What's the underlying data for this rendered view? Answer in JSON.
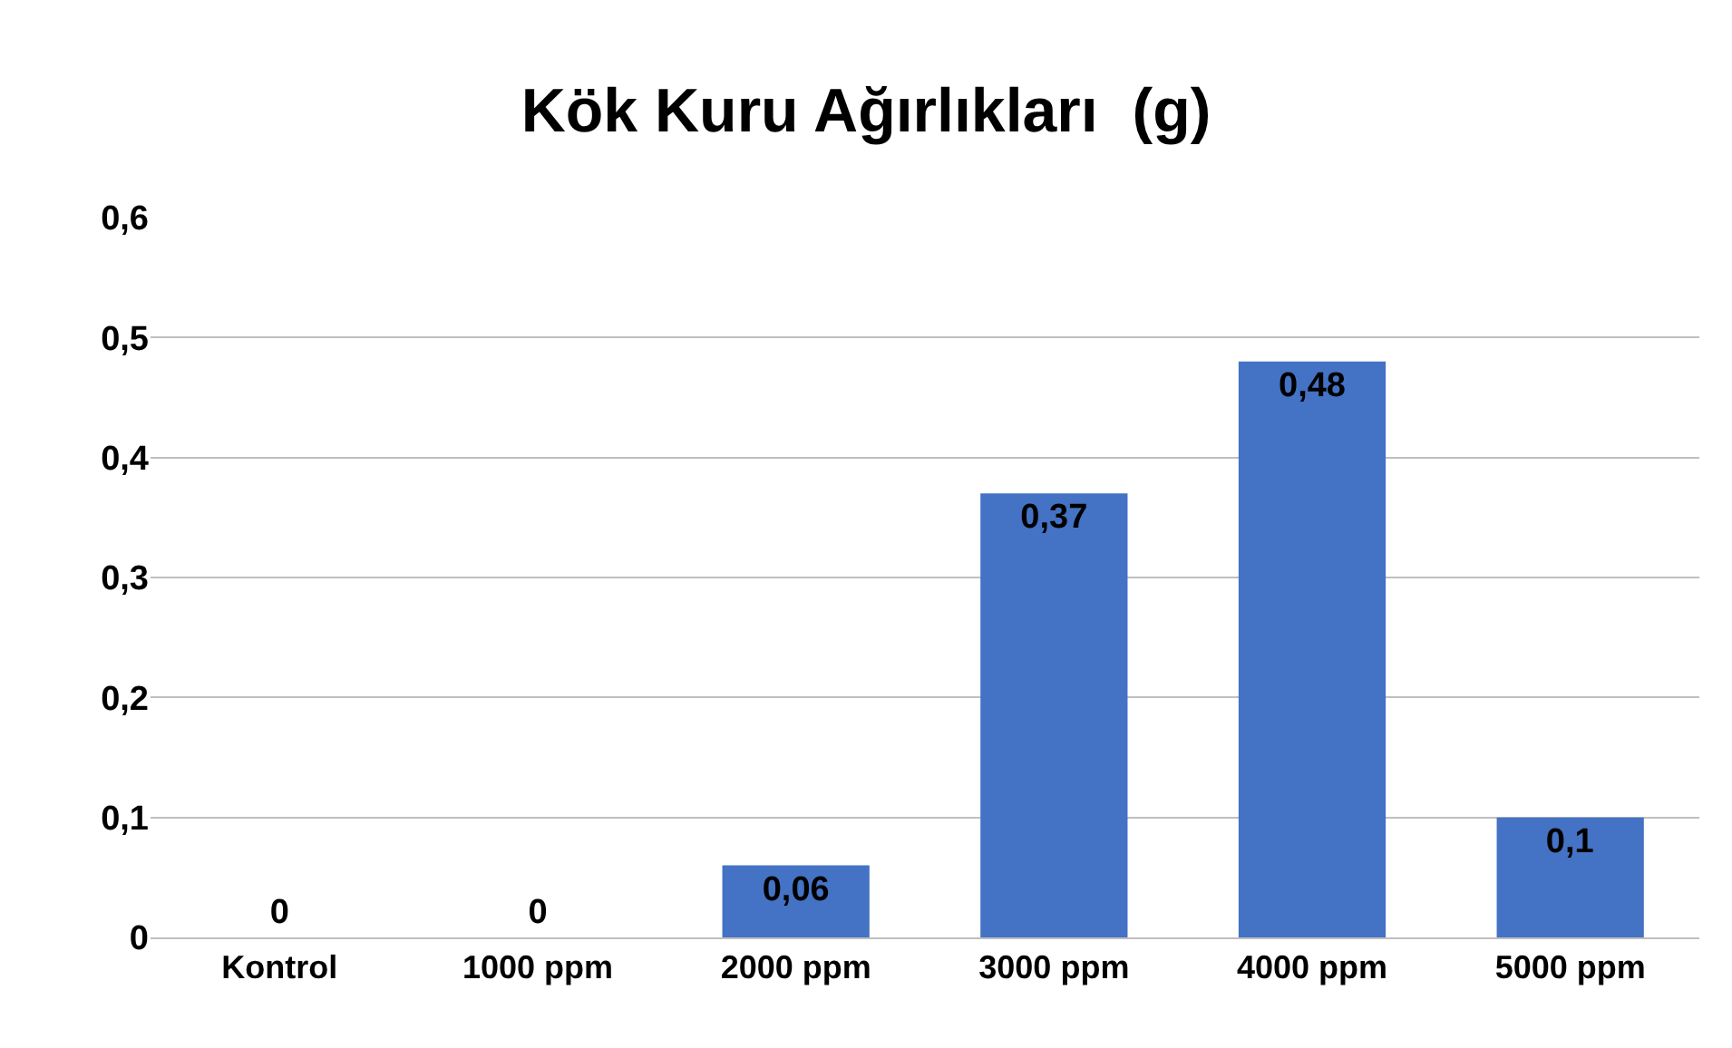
{
  "chart_data": {
    "type": "bar",
    "title": "Kök Kuru Ağırlıkları  (g)",
    "categories": [
      "Kontrol",
      "1000 ppm",
      "2000 ppm",
      "3000 ppm",
      "4000 ppm",
      "5000 ppm"
    ],
    "values": [
      0,
      0,
      0.06,
      0.37,
      0.48,
      0.1
    ],
    "value_labels": [
      "0",
      "0",
      "0,06",
      "0,37",
      "0,48",
      "0,1"
    ],
    "color": "#4472c4",
    "ylim": [
      0,
      0.6
    ],
    "yticks": [
      0,
      {
        "value": 0.1,
        "label": "0,1"
      },
      {
        "value": 0.2,
        "label": "0,2"
      },
      {
        "value": 0.3,
        "label": "0,3"
      },
      {
        "value": 0.4,
        "label": "0,4"
      },
      {
        "value": 0.5,
        "label": "0,5"
      },
      {
        "value": 0.6,
        "label": "0,6"
      }
    ],
    "grid": "y"
  }
}
